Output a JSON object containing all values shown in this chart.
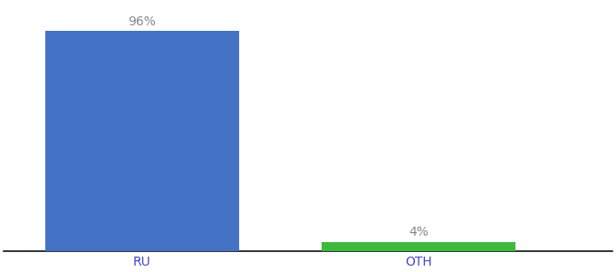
{
  "categories": [
    "RU",
    "OTH"
  ],
  "values": [
    96,
    4
  ],
  "bar_colors": [
    "#4472C4",
    "#3CB93C"
  ],
  "label_texts": [
    "96%",
    "4%"
  ],
  "ylim": [
    0,
    108
  ],
  "background_color": "#ffffff",
  "label_fontsize": 10,
  "tick_fontsize": 10,
  "bar_width": 0.7,
  "xlim": [
    -0.5,
    1.7
  ],
  "label_color": "#888888",
  "tick_color": "#4444cc"
}
